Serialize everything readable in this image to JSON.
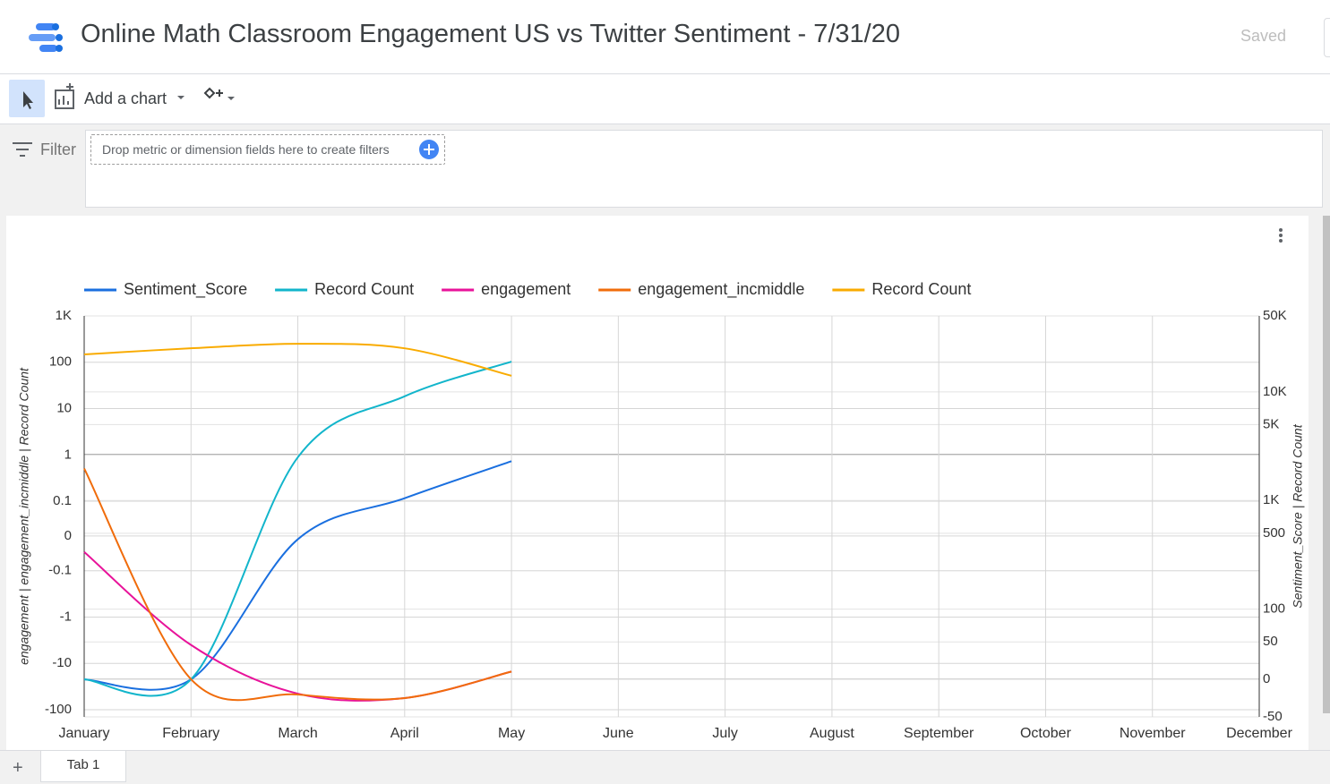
{
  "header": {
    "title": "Online Math Classroom Engagement US vs Twitter Sentiment - 7/31/20",
    "status": "Saved"
  },
  "toolbar": {
    "add_chart": "Add a chart"
  },
  "filter": {
    "label": "Filter",
    "placeholder": "Drop metric or dimension fields here to create filters"
  },
  "chart_data": {
    "type": "line",
    "categories": [
      "January",
      "February",
      "March",
      "April",
      "May",
      "June",
      "July",
      "August",
      "September",
      "October",
      "November",
      "December"
    ],
    "series": [
      {
        "name": "Sentiment_Score",
        "color": "#1a6fdf",
        "axis": "y2",
        "values": [
          0,
          0,
          440,
          1050,
          2300,
          null,
          null,
          null,
          null,
          null,
          null,
          null
        ]
      },
      {
        "name": "Record Count",
        "color": "#12b5cb",
        "axis": "y2",
        "values": [
          0,
          0,
          2500,
          9100,
          19000,
          null,
          null,
          null,
          null,
          null,
          null,
          null
        ]
      },
      {
        "name": "engagement",
        "color": "#e8139a",
        "axis": "y",
        "values": [
          -0.046,
          -4,
          -45,
          -56,
          -15,
          null,
          null,
          null,
          null,
          null,
          null,
          null
        ]
      },
      {
        "name": "engagement_incmiddle",
        "color": "#f06c0b",
        "axis": "y",
        "values": [
          0.51,
          -22,
          -47,
          -56,
          -15,
          null,
          null,
          null,
          null,
          null,
          null,
          null
        ]
      },
      {
        "name": "Record Count",
        "color": "#f9ab00",
        "axis": "y",
        "values": [
          148,
          200,
          250,
          200,
          51,
          null,
          null,
          null,
          null,
          null,
          null,
          null
        ]
      }
    ],
    "ylabel": "engagement | engagement_incmiddle | Record Count",
    "y2label": "Sentiment_Score | Record Count",
    "yscale": "symlog",
    "y2scale": "symlog",
    "ylim": [
      -100,
      1000
    ],
    "yticks": [
      {
        "value": 1000,
        "label": "1K"
      },
      100,
      10,
      1,
      0.1,
      0,
      -0.1,
      -1,
      -10,
      -100
    ],
    "y2lim": [
      -50,
      50000
    ],
    "y2ticks": [
      {
        "value": 50000,
        "label": "50K"
      },
      {
        "value": 10000,
        "label": "10K"
      },
      {
        "value": 5000,
        "label": "5K"
      },
      {
        "value": 1000,
        "label": "1K"
      },
      500,
      100,
      50,
      0,
      -50
    ],
    "grid": true,
    "legend": "top"
  },
  "tabs": [
    "Tab 1"
  ]
}
